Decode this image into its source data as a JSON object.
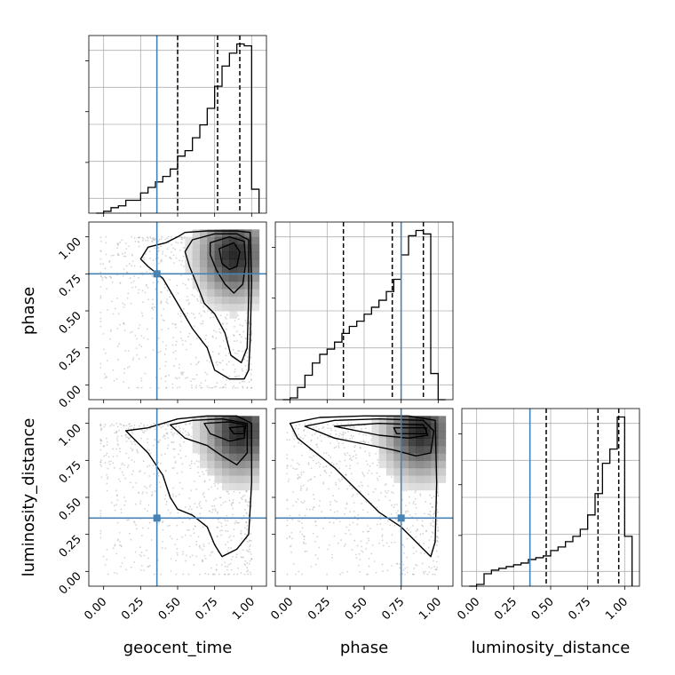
{
  "chart_data": {
    "type": "corner",
    "parameters": [
      "geocent_time",
      "phase",
      "luminosity_distance"
    ],
    "axis_range": [
      -0.1,
      1.1
    ],
    "tick_values": [
      0.0,
      0.25,
      0.5,
      0.75,
      1.0
    ],
    "tick_labels": [
      "0.00",
      "0.25",
      "0.50",
      "0.75",
      "1.00"
    ],
    "grid": true,
    "colors": {
      "truth": "#4682b4",
      "hist": "#000000",
      "scatter": "#b0b0b0"
    },
    "truths": [
      0.36,
      0.75,
      0.36
    ],
    "histograms": [
      {
        "parameter": "geocent_time",
        "bin_edges": [
          -0.05,
          0.0,
          0.05,
          0.1,
          0.15,
          0.2,
          0.25,
          0.3,
          0.35,
          0.4,
          0.45,
          0.5,
          0.55,
          0.6,
          0.65,
          0.7,
          0.75,
          0.8,
          0.85,
          0.9,
          0.95,
          1.0,
          1.05
        ],
        "values": [
          0.0,
          0.01,
          0.03,
          0.04,
          0.07,
          0.07,
          0.11,
          0.14,
          0.17,
          0.2,
          0.24,
          0.31,
          0.34,
          0.41,
          0.48,
          0.57,
          0.69,
          0.8,
          0.87,
          0.92,
          0.91,
          0.13
        ],
        "quantiles": [
          0.5,
          0.77,
          0.92
        ]
      },
      {
        "parameter": "phase",
        "bin_edges": [
          -0.05,
          0.0,
          0.05,
          0.1,
          0.15,
          0.2,
          0.25,
          0.3,
          0.35,
          0.4,
          0.45,
          0.5,
          0.55,
          0.6,
          0.65,
          0.7,
          0.75,
          0.8,
          0.85,
          0.9,
          0.95,
          1.0,
          1.05
        ],
        "values": [
          0.0,
          0.01,
          0.07,
          0.14,
          0.21,
          0.26,
          0.29,
          0.33,
          0.38,
          0.42,
          0.45,
          0.49,
          0.53,
          0.57,
          0.62,
          0.69,
          0.83,
          0.94,
          0.97,
          0.95,
          0.15,
          0.0
        ],
        "quantiles": [
          0.36,
          0.69,
          0.9
        ]
      },
      {
        "parameter": "luminosity_distance",
        "bin_edges": [
          -0.05,
          0.0,
          0.05,
          0.1,
          0.15,
          0.2,
          0.25,
          0.3,
          0.35,
          0.4,
          0.45,
          0.5,
          0.55,
          0.6,
          0.65,
          0.7,
          0.75,
          0.8,
          0.85,
          0.9,
          0.95,
          1.0,
          1.05
        ],
        "values": [
          0.0,
          0.01,
          0.07,
          0.09,
          0.1,
          0.11,
          0.12,
          0.13,
          0.15,
          0.16,
          0.17,
          0.2,
          0.22,
          0.25,
          0.28,
          0.32,
          0.4,
          0.52,
          0.69,
          0.77,
          0.95,
          0.28
        ],
        "quantiles": [
          0.47,
          0.82,
          0.96
        ]
      }
    ],
    "panels_2d": [
      {
        "x_parameter": "geocent_time",
        "y_parameter": "phase",
        "scatter_center": [
          0.55,
          0.62
        ],
        "density_peak": [
          0.88,
          0.88
        ],
        "contours": [
          [
            [
              0.5,
              1.0
            ],
            [
              0.55,
              1.03
            ],
            [
              0.7,
              1.04
            ],
            [
              0.9,
              1.04
            ],
            [
              0.99,
              1.03
            ],
            [
              1.0,
              0.7
            ],
            [
              0.99,
              0.3
            ],
            [
              0.98,
              0.1
            ],
            [
              0.95,
              0.04
            ],
            [
              0.85,
              0.04
            ],
            [
              0.75,
              0.1
            ],
            [
              0.7,
              0.25
            ],
            [
              0.6,
              0.38
            ],
            [
              0.5,
              0.55
            ],
            [
              0.4,
              0.72
            ],
            [
              0.3,
              0.8
            ],
            [
              0.25,
              0.85
            ],
            [
              0.3,
              0.93
            ],
            [
              0.42,
              0.96
            ],
            [
              0.5,
              1.0
            ]
          ],
          [
            [
              0.6,
              0.98
            ],
            [
              0.75,
              1.02
            ],
            [
              0.9,
              1.02
            ],
            [
              0.98,
              0.98
            ],
            [
              0.98,
              0.6
            ],
            [
              0.97,
              0.25
            ],
            [
              0.93,
              0.15
            ],
            [
              0.86,
              0.2
            ],
            [
              0.82,
              0.35
            ],
            [
              0.75,
              0.48
            ],
            [
              0.68,
              0.55
            ],
            [
              0.63,
              0.68
            ],
            [
              0.58,
              0.8
            ],
            [
              0.55,
              0.9
            ],
            [
              0.6,
              0.98
            ]
          ],
          [
            [
              0.72,
              0.96
            ],
            [
              0.85,
              1.0
            ],
            [
              0.95,
              0.97
            ],
            [
              0.96,
              0.82
            ],
            [
              0.94,
              0.68
            ],
            [
              0.88,
              0.62
            ],
            [
              0.82,
              0.68
            ],
            [
              0.76,
              0.78
            ],
            [
              0.72,
              0.88
            ],
            [
              0.72,
              0.96
            ]
          ],
          [
            [
              0.78,
              0.92
            ],
            [
              0.88,
              0.96
            ],
            [
              0.92,
              0.9
            ],
            [
              0.9,
              0.8
            ],
            [
              0.85,
              0.78
            ],
            [
              0.8,
              0.82
            ],
            [
              0.78,
              0.92
            ]
          ]
        ]
      },
      {
        "x_parameter": "geocent_time",
        "y_parameter": "luminosity_distance",
        "scatter_center": [
          0.55,
          0.62
        ],
        "density_peak": [
          0.92,
          0.95
        ],
        "contours": [
          [
            [
              0.15,
              0.95
            ],
            [
              0.3,
              0.97
            ],
            [
              0.5,
              1.03
            ],
            [
              0.7,
              1.05
            ],
            [
              0.9,
              1.05
            ],
            [
              1.0,
              1.0
            ],
            [
              1.0,
              0.6
            ],
            [
              0.98,
              0.25
            ],
            [
              0.9,
              0.15
            ],
            [
              0.8,
              0.1
            ],
            [
              0.75,
              0.18
            ],
            [
              0.7,
              0.3
            ],
            [
              0.6,
              0.38
            ],
            [
              0.5,
              0.42
            ],
            [
              0.45,
              0.5
            ],
            [
              0.4,
              0.65
            ],
            [
              0.3,
              0.8
            ],
            [
              0.2,
              0.9
            ],
            [
              0.15,
              0.95
            ]
          ],
          [
            [
              0.45,
              0.99
            ],
            [
              0.6,
              1.02
            ],
            [
              0.8,
              1.03
            ],
            [
              0.97,
              1.0
            ],
            [
              0.97,
              0.8
            ],
            [
              0.9,
              0.72
            ],
            [
              0.8,
              0.78
            ],
            [
              0.7,
              0.85
            ],
            [
              0.55,
              0.9
            ],
            [
              0.45,
              0.99
            ]
          ],
          [
            [
              0.68,
              1.0
            ],
            [
              0.85,
              1.01
            ],
            [
              0.96,
              0.99
            ],
            [
              0.95,
              0.9
            ],
            [
              0.85,
              0.88
            ],
            [
              0.72,
              0.93
            ],
            [
              0.68,
              1.0
            ]
          ],
          [
            [
              0.85,
              0.97
            ],
            [
              0.95,
              0.98
            ],
            [
              0.95,
              0.93
            ],
            [
              0.88,
              0.93
            ],
            [
              0.85,
              0.97
            ]
          ]
        ]
      },
      {
        "x_parameter": "phase",
        "y_parameter": "luminosity_distance",
        "scatter_center": [
          0.5,
          0.62
        ],
        "density_peak": [
          0.88,
          0.95
        ],
        "contours": [
          [
            [
              0.0,
              1.0
            ],
            [
              0.2,
              1.04
            ],
            [
              0.5,
              1.05
            ],
            [
              0.8,
              1.05
            ],
            [
              0.98,
              1.02
            ],
            [
              0.99,
              0.6
            ],
            [
              0.98,
              0.2
            ],
            [
              0.95,
              0.1
            ],
            [
              0.9,
              0.15
            ],
            [
              0.85,
              0.2
            ],
            [
              0.75,
              0.3
            ],
            [
              0.6,
              0.4
            ],
            [
              0.5,
              0.5
            ],
            [
              0.4,
              0.6
            ],
            [
              0.3,
              0.7
            ],
            [
              0.15,
              0.82
            ],
            [
              0.05,
              0.9
            ],
            [
              0.0,
              1.0
            ]
          ],
          [
            [
              0.1,
              0.98
            ],
            [
              0.3,
              1.02
            ],
            [
              0.6,
              1.03
            ],
            [
              0.9,
              1.02
            ],
            [
              0.97,
              0.95
            ],
            [
              0.95,
              0.8
            ],
            [
              0.85,
              0.78
            ],
            [
              0.7,
              0.82
            ],
            [
              0.5,
              0.86
            ],
            [
              0.3,
              0.9
            ],
            [
              0.1,
              0.98
            ]
          ],
          [
            [
              0.3,
              0.98
            ],
            [
              0.6,
              1.0
            ],
            [
              0.9,
              0.99
            ],
            [
              0.93,
              0.92
            ],
            [
              0.8,
              0.9
            ],
            [
              0.6,
              0.92
            ],
            [
              0.3,
              0.98
            ]
          ],
          [
            [
              0.7,
              0.97
            ],
            [
              0.92,
              0.97
            ],
            [
              0.92,
              0.93
            ],
            [
              0.72,
              0.93
            ],
            [
              0.7,
              0.97
            ]
          ]
        ]
      }
    ]
  }
}
